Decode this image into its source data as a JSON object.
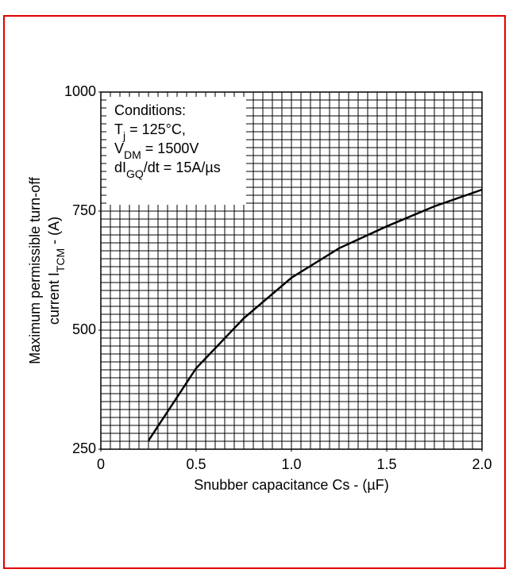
{
  "chart_data": {
    "type": "line",
    "annotation": [
      [
        "Conditions:"
      ],
      [
        "T",
        "j",
        " = 125°C,"
      ],
      [
        "V",
        "DM",
        " = 1500V"
      ],
      [
        "dI",
        "GQ",
        "/dt = 15A/µs"
      ]
    ],
    "xlabel": "Snubber capacitance Cs - (µF)",
    "ylabel": [
      [
        "Maximum permissible turn-off"
      ],
      [
        "current I",
        "TCM",
        " - (A)"
      ]
    ],
    "x": [
      0.25,
      0.5,
      0.75,
      1.0,
      1.25,
      1.5,
      1.75,
      2.0
    ],
    "series": [
      {
        "color": "#000000",
        "values": [
          268,
          420,
          525,
          610,
          672,
          718,
          760,
          795
        ]
      }
    ],
    "xlim": [
      0,
      2.0
    ],
    "xticks": [
      0,
      0.5,
      {
        "value": 1.0,
        "label": "1.0"
      },
      1.5,
      {
        "value": 2.0,
        "label": "2.0"
      }
    ],
    "ylim": [
      250,
      1000
    ],
    "yticks": [
      250,
      500,
      750,
      1000
    ],
    "grid": true,
    "minor_grid": {
      "x": 10,
      "y": 15
    }
  }
}
